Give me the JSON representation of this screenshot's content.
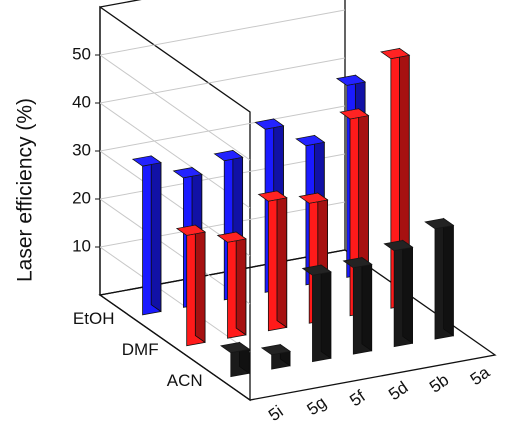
{
  "chart_data": {
    "type": "bar3d",
    "zlabel": "Laser efficiency (%)",
    "categories": [
      "5i",
      "5g",
      "5f",
      "5d",
      "5b",
      "5a"
    ],
    "series": [
      {
        "name": "EtOH",
        "color": "#1a1aff",
        "values": [
          31,
          27,
          29,
          34,
          29,
          40
        ]
      },
      {
        "name": "DMF",
        "color": "#ff1a1a",
        "values": [
          23,
          20,
          27,
          25,
          41,
          52
        ]
      },
      {
        "name": "ACN",
        "color": "#1a1a1a",
        "values": [
          5,
          3,
          18,
          18,
          20,
          23
        ]
      }
    ],
    "zlim": [
      0,
      60
    ],
    "zticks": [
      10,
      20,
      30,
      40,
      50
    ],
    "grid": true
  }
}
